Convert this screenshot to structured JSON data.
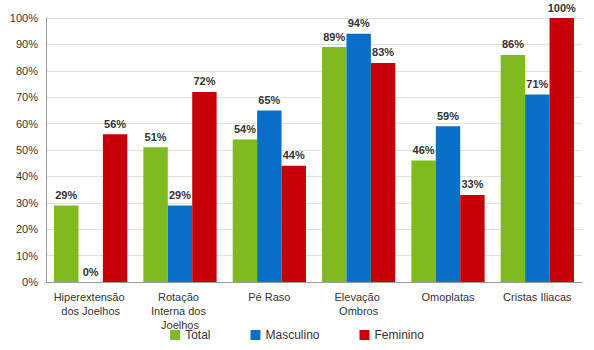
{
  "chart_data": {
    "type": "bar",
    "categories": [
      "Hiperextensão dos Joelhos",
      "Rotação Interna dos Joelhos",
      "Pé Raso",
      "Elevação Ombros",
      "Omoplatas",
      "Cristas Iliacas"
    ],
    "series": [
      {
        "name": "Total",
        "color": "#7fba1e",
        "values": [
          29,
          51,
          54,
          89,
          46,
          86
        ],
        "value_labels": [
          "29%",
          "51%",
          "54%",
          "89%",
          "46%",
          "86%"
        ]
      },
      {
        "name": "Masculino",
        "color": "#0a6fc8",
        "values": [
          0,
          29,
          65,
          94,
          59,
          71
        ],
        "value_labels": [
          "0%",
          "29%",
          "65%",
          "94%",
          "59%",
          "71%"
        ]
      },
      {
        "name": "Feminino",
        "color": "#c8000a",
        "values": [
          56,
          72,
          44,
          83,
          33,
          100
        ],
        "value_labels": [
          "56%",
          "72%",
          "44%",
          "83%",
          "33%",
          "100%"
        ]
      }
    ],
    "ylim": [
      0,
      100
    ],
    "yticks": [
      {
        "value": 0,
        "label": "0%"
      },
      {
        "value": 10,
        "label": "10%"
      },
      {
        "value": 20,
        "label": "20%"
      },
      {
        "value": 30,
        "label": "30%"
      },
      {
        "value": 40,
        "label": "40%"
      },
      {
        "value": 50,
        "label": "50%"
      },
      {
        "value": 60,
        "label": "60%"
      },
      {
        "value": 70,
        "label": "70%"
      },
      {
        "value": 80,
        "label": "80%"
      },
      {
        "value": 90,
        "label": "90%"
      },
      {
        "value": 100,
        "label": "100%"
      }
    ],
    "grid": true,
    "legend": "bottom",
    "data_labels": true
  }
}
